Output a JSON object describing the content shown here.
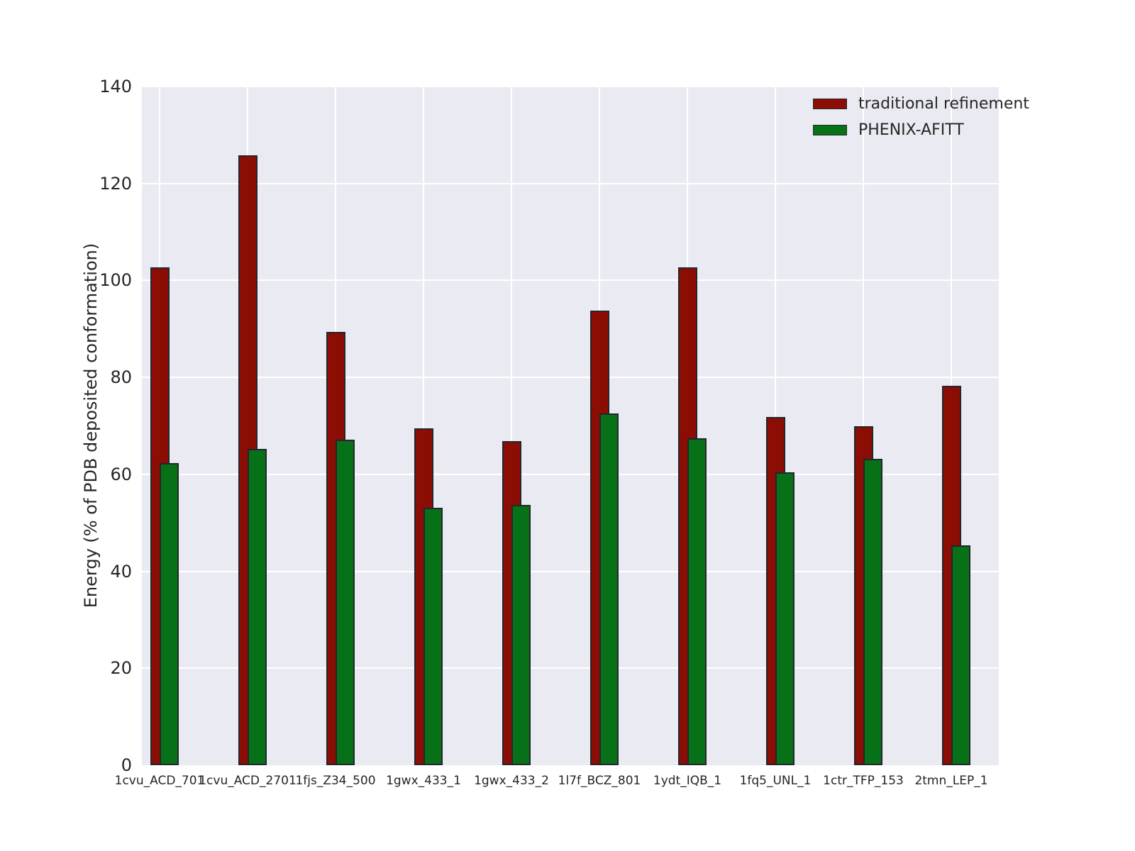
{
  "chart_data": {
    "type": "bar",
    "title": "",
    "xlabel": "",
    "ylabel": "Energy (% of PDB deposited conformation)",
    "ylim": [
      0,
      140
    ],
    "yticks": [
      0,
      20,
      40,
      60,
      80,
      100,
      120,
      140
    ],
    "grid": true,
    "legend_position": "upper right",
    "bar_style": "overlapping-pairs",
    "categories": [
      "1cvu_ACD_701",
      "1cvu_ACD_2701",
      "1fjs_Z34_500",
      "1gwx_433_1",
      "1gwx_433_2",
      "1l7f_BCZ_801",
      "1ydt_IQB_1",
      "1fq5_UNL_1",
      "1ctr_TFP_153",
      "2tmn_LEP_1"
    ],
    "series": [
      {
        "name": "traditional refinement",
        "color": "#8B0D04",
        "values": [
          102.7,
          125.8,
          89.4,
          69.5,
          66.9,
          93.8,
          102.7,
          71.9,
          70.0,
          78.3
        ]
      },
      {
        "name": "PHENIX-AFITT",
        "color": "#077117",
        "values": [
          62.3,
          65.3,
          67.2,
          53.1,
          53.7,
          72.6,
          67.5,
          60.4,
          63.2,
          45.4
        ]
      }
    ],
    "colors": {
      "axes_background": "#eaeaf2",
      "grid": "#ffffff",
      "bar_edge": "#25252d",
      "text": "#262626"
    }
  }
}
